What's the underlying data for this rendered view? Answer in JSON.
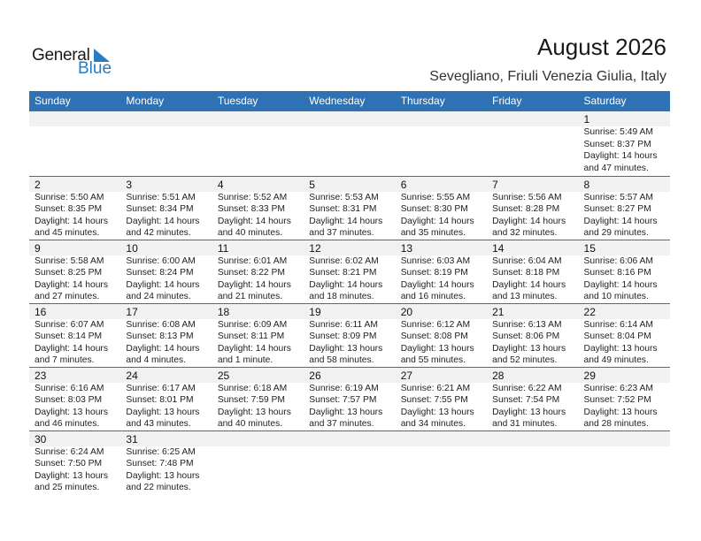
{
  "logo": {
    "text1": "General",
    "text2": "Blue"
  },
  "header": {
    "title": "August 2026",
    "location": "Sevegliano, Friuli Venezia Giulia, Italy"
  },
  "colors": {
    "accent": "#2e72b3",
    "date_band": "#f1f1f1"
  },
  "weekdays": [
    "Sunday",
    "Monday",
    "Tuesday",
    "Wednesday",
    "Thursday",
    "Friday",
    "Saturday"
  ],
  "weeks": [
    [
      null,
      null,
      null,
      null,
      null,
      null,
      {
        "day": "1",
        "sunrise": "Sunrise: 5:49 AM",
        "sunset": "Sunset: 8:37 PM",
        "daylight1": "Daylight: 14 hours",
        "daylight2": "and 47 minutes."
      }
    ],
    [
      {
        "day": "2",
        "sunrise": "Sunrise: 5:50 AM",
        "sunset": "Sunset: 8:35 PM",
        "daylight1": "Daylight: 14 hours",
        "daylight2": "and 45 minutes."
      },
      {
        "day": "3",
        "sunrise": "Sunrise: 5:51 AM",
        "sunset": "Sunset: 8:34 PM",
        "daylight1": "Daylight: 14 hours",
        "daylight2": "and 42 minutes."
      },
      {
        "day": "4",
        "sunrise": "Sunrise: 5:52 AM",
        "sunset": "Sunset: 8:33 PM",
        "daylight1": "Daylight: 14 hours",
        "daylight2": "and 40 minutes."
      },
      {
        "day": "5",
        "sunrise": "Sunrise: 5:53 AM",
        "sunset": "Sunset: 8:31 PM",
        "daylight1": "Daylight: 14 hours",
        "daylight2": "and 37 minutes."
      },
      {
        "day": "6",
        "sunrise": "Sunrise: 5:55 AM",
        "sunset": "Sunset: 8:30 PM",
        "daylight1": "Daylight: 14 hours",
        "daylight2": "and 35 minutes."
      },
      {
        "day": "7",
        "sunrise": "Sunrise: 5:56 AM",
        "sunset": "Sunset: 8:28 PM",
        "daylight1": "Daylight: 14 hours",
        "daylight2": "and 32 minutes."
      },
      {
        "day": "8",
        "sunrise": "Sunrise: 5:57 AM",
        "sunset": "Sunset: 8:27 PM",
        "daylight1": "Daylight: 14 hours",
        "daylight2": "and 29 minutes."
      }
    ],
    [
      {
        "day": "9",
        "sunrise": "Sunrise: 5:58 AM",
        "sunset": "Sunset: 8:25 PM",
        "daylight1": "Daylight: 14 hours",
        "daylight2": "and 27 minutes."
      },
      {
        "day": "10",
        "sunrise": "Sunrise: 6:00 AM",
        "sunset": "Sunset: 8:24 PM",
        "daylight1": "Daylight: 14 hours",
        "daylight2": "and 24 minutes."
      },
      {
        "day": "11",
        "sunrise": "Sunrise: 6:01 AM",
        "sunset": "Sunset: 8:22 PM",
        "daylight1": "Daylight: 14 hours",
        "daylight2": "and 21 minutes."
      },
      {
        "day": "12",
        "sunrise": "Sunrise: 6:02 AM",
        "sunset": "Sunset: 8:21 PM",
        "daylight1": "Daylight: 14 hours",
        "daylight2": "and 18 minutes."
      },
      {
        "day": "13",
        "sunrise": "Sunrise: 6:03 AM",
        "sunset": "Sunset: 8:19 PM",
        "daylight1": "Daylight: 14 hours",
        "daylight2": "and 16 minutes."
      },
      {
        "day": "14",
        "sunrise": "Sunrise: 6:04 AM",
        "sunset": "Sunset: 8:18 PM",
        "daylight1": "Daylight: 14 hours",
        "daylight2": "and 13 minutes."
      },
      {
        "day": "15",
        "sunrise": "Sunrise: 6:06 AM",
        "sunset": "Sunset: 8:16 PM",
        "daylight1": "Daylight: 14 hours",
        "daylight2": "and 10 minutes."
      }
    ],
    [
      {
        "day": "16",
        "sunrise": "Sunrise: 6:07 AM",
        "sunset": "Sunset: 8:14 PM",
        "daylight1": "Daylight: 14 hours",
        "daylight2": "and 7 minutes."
      },
      {
        "day": "17",
        "sunrise": "Sunrise: 6:08 AM",
        "sunset": "Sunset: 8:13 PM",
        "daylight1": "Daylight: 14 hours",
        "daylight2": "and 4 minutes."
      },
      {
        "day": "18",
        "sunrise": "Sunrise: 6:09 AM",
        "sunset": "Sunset: 8:11 PM",
        "daylight1": "Daylight: 14 hours",
        "daylight2": "and 1 minute."
      },
      {
        "day": "19",
        "sunrise": "Sunrise: 6:11 AM",
        "sunset": "Sunset: 8:09 PM",
        "daylight1": "Daylight: 13 hours",
        "daylight2": "and 58 minutes."
      },
      {
        "day": "20",
        "sunrise": "Sunrise: 6:12 AM",
        "sunset": "Sunset: 8:08 PM",
        "daylight1": "Daylight: 13 hours",
        "daylight2": "and 55 minutes."
      },
      {
        "day": "21",
        "sunrise": "Sunrise: 6:13 AM",
        "sunset": "Sunset: 8:06 PM",
        "daylight1": "Daylight: 13 hours",
        "daylight2": "and 52 minutes."
      },
      {
        "day": "22",
        "sunrise": "Sunrise: 6:14 AM",
        "sunset": "Sunset: 8:04 PM",
        "daylight1": "Daylight: 13 hours",
        "daylight2": "and 49 minutes."
      }
    ],
    [
      {
        "day": "23",
        "sunrise": "Sunrise: 6:16 AM",
        "sunset": "Sunset: 8:03 PM",
        "daylight1": "Daylight: 13 hours",
        "daylight2": "and 46 minutes."
      },
      {
        "day": "24",
        "sunrise": "Sunrise: 6:17 AM",
        "sunset": "Sunset: 8:01 PM",
        "daylight1": "Daylight: 13 hours",
        "daylight2": "and 43 minutes."
      },
      {
        "day": "25",
        "sunrise": "Sunrise: 6:18 AM",
        "sunset": "Sunset: 7:59 PM",
        "daylight1": "Daylight: 13 hours",
        "daylight2": "and 40 minutes."
      },
      {
        "day": "26",
        "sunrise": "Sunrise: 6:19 AM",
        "sunset": "Sunset: 7:57 PM",
        "daylight1": "Daylight: 13 hours",
        "daylight2": "and 37 minutes."
      },
      {
        "day": "27",
        "sunrise": "Sunrise: 6:21 AM",
        "sunset": "Sunset: 7:55 PM",
        "daylight1": "Daylight: 13 hours",
        "daylight2": "and 34 minutes."
      },
      {
        "day": "28",
        "sunrise": "Sunrise: 6:22 AM",
        "sunset": "Sunset: 7:54 PM",
        "daylight1": "Daylight: 13 hours",
        "daylight2": "and 31 minutes."
      },
      {
        "day": "29",
        "sunrise": "Sunrise: 6:23 AM",
        "sunset": "Sunset: 7:52 PM",
        "daylight1": "Daylight: 13 hours",
        "daylight2": "and 28 minutes."
      }
    ],
    [
      {
        "day": "30",
        "sunrise": "Sunrise: 6:24 AM",
        "sunset": "Sunset: 7:50 PM",
        "daylight1": "Daylight: 13 hours",
        "daylight2": "and 25 minutes."
      },
      {
        "day": "31",
        "sunrise": "Sunrise: 6:25 AM",
        "sunset": "Sunset: 7:48 PM",
        "daylight1": "Daylight: 13 hours",
        "daylight2": "and 22 minutes."
      },
      null,
      null,
      null,
      null,
      null
    ]
  ]
}
